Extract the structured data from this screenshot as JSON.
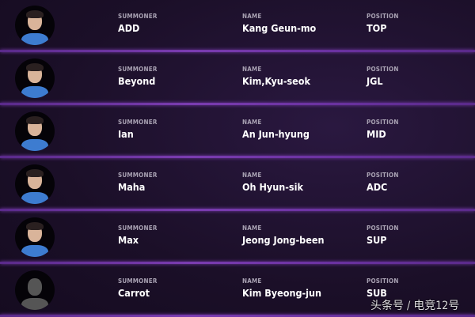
{
  "labels": {
    "summoner": "SUMMONER",
    "name": "NAME",
    "position": "POSITION"
  },
  "players": [
    {
      "summoner": "ADD",
      "name": "Kang Geun-mo",
      "position": "TOP",
      "photo": "player-photo"
    },
    {
      "summoner": "Beyond",
      "name": "Kim,Kyu-seok",
      "position": "JGL",
      "photo": "player-photo"
    },
    {
      "summoner": "Ian",
      "name": "An Jun-hyung",
      "position": "MID",
      "photo": "player-photo"
    },
    {
      "summoner": "Maha",
      "name": "Oh Hyun-sik",
      "position": "ADC",
      "photo": "player-photo"
    },
    {
      "summoner": "Max",
      "name": "Jeong Jong-been",
      "position": "SUP",
      "photo": "player-photo"
    },
    {
      "summoner": "Carrot",
      "name": "Kim Byeong-jun",
      "position": "SUB",
      "photo": "placeholder-silhouette"
    }
  ],
  "watermark": "头条号 / 电竞12号",
  "colors": {
    "background": "#1c1029",
    "divider": "#7a3cb0",
    "jersey": "#3d7cd0"
  }
}
